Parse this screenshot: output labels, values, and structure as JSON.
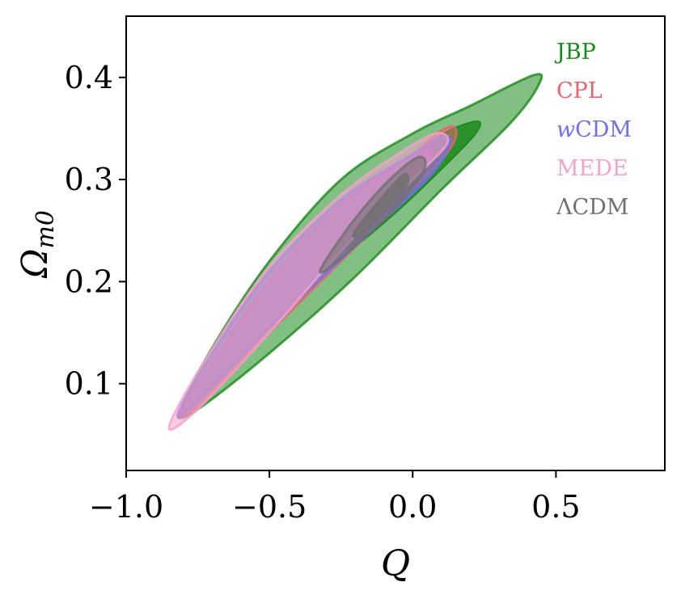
{
  "chart_data": {
    "type": "contour",
    "xlabel": "Q",
    "ylabel": "Ω",
    "ylabel_sub": "m0",
    "xlim": [
      -1.0,
      0.88
    ],
    "ylim": [
      0.015,
      0.46
    ],
    "xticks": [
      -1.0,
      -0.5,
      0.0,
      0.5
    ],
    "xtick_labels": [
      "−1.0",
      "−0.5",
      "0.0",
      "0.5"
    ],
    "yticks": [
      0.1,
      0.2,
      0.3,
      0.4
    ],
    "ytick_labels": [
      "0.1",
      "0.2",
      "0.3",
      "0.4"
    ],
    "legend_position": "top-right",
    "series": [
      {
        "name": "JBP",
        "color": "#1b8a1b",
        "outer": [
          [
            -0.81,
            0.073
          ],
          [
            -0.7,
            0.135
          ],
          [
            -0.5,
            0.22
          ],
          [
            -0.25,
            0.3
          ],
          [
            0.0,
            0.345
          ],
          [
            0.2,
            0.372
          ],
          [
            0.42,
            0.402
          ],
          [
            0.44,
            0.393
          ],
          [
            0.34,
            0.355
          ],
          [
            0.1,
            0.29
          ],
          [
            -0.2,
            0.205
          ],
          [
            -0.5,
            0.13
          ],
          [
            -0.75,
            0.075
          ]
        ],
        "inner": [
          [
            -0.22,
            0.24
          ],
          [
            -0.05,
            0.3
          ],
          [
            0.08,
            0.34
          ],
          [
            0.22,
            0.357
          ],
          [
            0.22,
            0.345
          ],
          [
            0.1,
            0.31
          ],
          [
            -0.05,
            0.27
          ],
          [
            -0.2,
            0.235
          ]
        ]
      },
      {
        "name": "CPL",
        "color": "#e8636d",
        "outer": [
          [
            -0.82,
            0.068
          ],
          [
            -0.7,
            0.12
          ],
          [
            -0.5,
            0.2
          ],
          [
            -0.25,
            0.275
          ],
          [
            0.0,
            0.325
          ],
          [
            0.1,
            0.348
          ],
          [
            0.15,
            0.35
          ],
          [
            0.13,
            0.33
          ],
          [
            0.0,
            0.29
          ],
          [
            -0.25,
            0.22
          ],
          [
            -0.5,
            0.15
          ],
          [
            -0.72,
            0.085
          ]
        ],
        "inner": [
          [
            -0.2,
            0.255
          ],
          [
            -0.05,
            0.3
          ],
          [
            0.05,
            0.33
          ],
          [
            0.06,
            0.32
          ],
          [
            -0.05,
            0.285
          ],
          [
            -0.18,
            0.25
          ]
        ]
      },
      {
        "name": "wCDM",
        "color": "#7070ee",
        "outer": [
          [
            -0.82,
            0.07
          ],
          [
            -0.7,
            0.13
          ],
          [
            -0.5,
            0.21
          ],
          [
            -0.25,
            0.28
          ],
          [
            0.0,
            0.325
          ],
          [
            0.1,
            0.342
          ],
          [
            0.13,
            0.335
          ],
          [
            0.05,
            0.3
          ],
          [
            -0.2,
            0.235
          ],
          [
            -0.5,
            0.155
          ],
          [
            -0.74,
            0.085
          ]
        ],
        "inner": []
      },
      {
        "name": "MEDE",
        "color": "#f4a3cc",
        "outer": [
          [
            -0.85,
            0.058
          ],
          [
            -0.72,
            0.125
          ],
          [
            -0.5,
            0.215
          ],
          [
            -0.25,
            0.285
          ],
          [
            -0.05,
            0.325
          ],
          [
            0.08,
            0.345
          ],
          [
            0.12,
            0.335
          ],
          [
            0.0,
            0.3
          ],
          [
            -0.25,
            0.23
          ],
          [
            -0.5,
            0.15
          ],
          [
            -0.75,
            0.075
          ]
        ],
        "inner": []
      },
      {
        "name": "ΛCDM",
        "color": "#707070",
        "outer": [
          [
            -0.31,
            0.218
          ],
          [
            -0.2,
            0.262
          ],
          [
            -0.08,
            0.3
          ],
          [
            0.02,
            0.322
          ],
          [
            0.04,
            0.31
          ],
          [
            -0.05,
            0.275
          ],
          [
            -0.2,
            0.235
          ],
          [
            -0.31,
            0.21
          ]
        ],
        "inner": [
          [
            -0.2,
            0.25
          ],
          [
            -0.1,
            0.285
          ],
          [
            -0.03,
            0.305
          ],
          [
            -0.02,
            0.295
          ],
          [
            -0.1,
            0.27
          ],
          [
            -0.19,
            0.245
          ]
        ]
      }
    ]
  }
}
